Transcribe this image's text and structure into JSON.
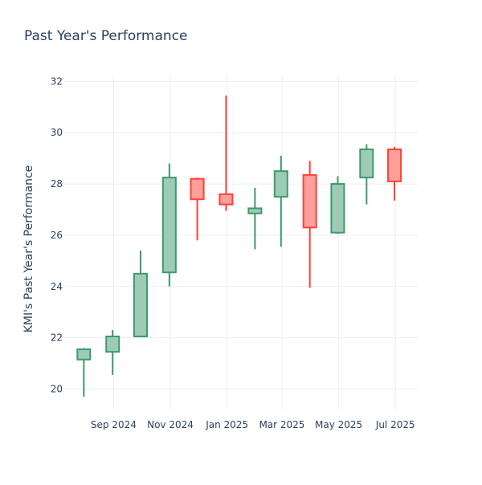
{
  "chart_data": {
    "type": "candlestick",
    "title": "Past Year's Performance",
    "xlabel": "",
    "ylabel": "KMI's Past Year's Performance",
    "ylim": [
      19.2,
      32.2
    ],
    "xlim": [
      "2024-07-10",
      "2025-07-25"
    ],
    "yticks": [
      20,
      22,
      24,
      26,
      28,
      30,
      32
    ],
    "xticks": [
      {
        "date": "2024-09-01",
        "label": "Sep 2024"
      },
      {
        "date": "2024-11-01",
        "label": "Nov 2024"
      },
      {
        "date": "2025-01-01",
        "label": "Jan 2025"
      },
      {
        "date": "2025-03-01",
        "label": "Mar 2025"
      },
      {
        "date": "2025-05-01",
        "label": "May 2025"
      },
      {
        "date": "2025-07-01",
        "label": "Jul 2025"
      }
    ],
    "grid": true,
    "colors": {
      "increasing": "#3d9970",
      "increasing_fill": "#9ecbb4",
      "decreasing": "#ff4136",
      "decreasing_fill": "#ff9f9a"
    },
    "candles": [
      {
        "date": "2024-07-31",
        "open": 21.15,
        "high": 21.6,
        "low": 19.7,
        "close": 21.55
      },
      {
        "date": "2024-08-31",
        "open": 21.45,
        "high": 22.3,
        "low": 20.55,
        "close": 22.05
      },
      {
        "date": "2024-09-30",
        "open": 22.05,
        "high": 25.4,
        "low": 22.05,
        "close": 24.5
      },
      {
        "date": "2024-10-31",
        "open": 24.55,
        "high": 28.8,
        "low": 24.0,
        "close": 28.25
      },
      {
        "date": "2024-11-30",
        "open": 28.2,
        "high": 28.25,
        "low": 25.8,
        "close": 27.4
      },
      {
        "date": "2024-12-31",
        "open": 27.6,
        "high": 31.45,
        "low": 26.95,
        "close": 27.2
      },
      {
        "date": "2025-01-31",
        "open": 26.85,
        "high": 27.85,
        "low": 25.45,
        "close": 27.05
      },
      {
        "date": "2025-02-28",
        "open": 27.5,
        "high": 29.1,
        "low": 25.55,
        "close": 28.5
      },
      {
        "date": "2025-03-31",
        "open": 28.35,
        "high": 28.9,
        "low": 23.95,
        "close": 26.3
      },
      {
        "date": "2025-04-30",
        "open": 26.1,
        "high": 28.3,
        "low": 26.05,
        "close": 28.0
      },
      {
        "date": "2025-05-31",
        "open": 28.25,
        "high": 29.55,
        "low": 27.2,
        "close": 29.35
      },
      {
        "date": "2025-06-30",
        "open": 29.35,
        "high": 29.45,
        "low": 27.35,
        "close": 28.1
      }
    ]
  }
}
